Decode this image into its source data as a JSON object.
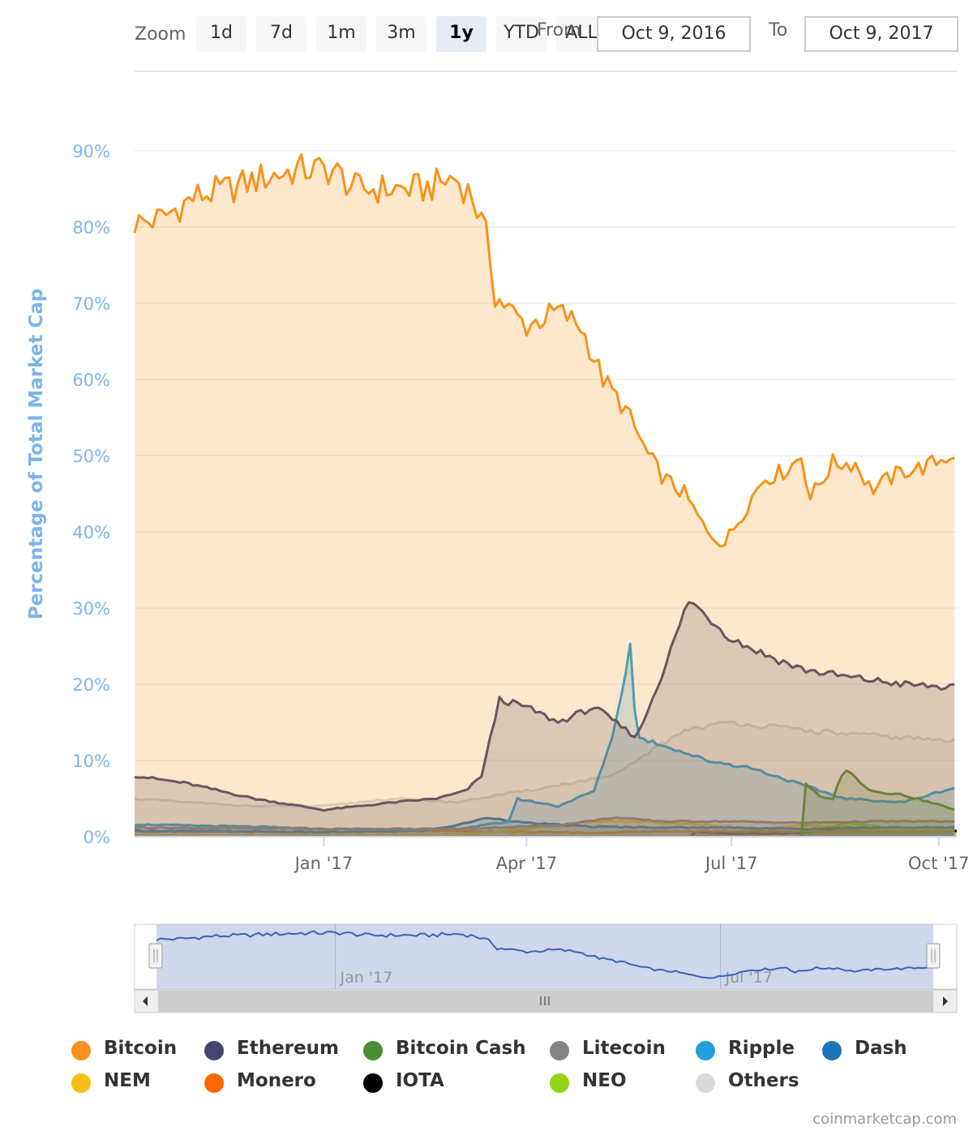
{
  "zoom": {
    "label": "Zoom",
    "buttons": [
      "1d",
      "7d",
      "1m",
      "3m",
      "1y",
      "YTD",
      "ALL"
    ],
    "active": "1y"
  },
  "range": {
    "from_label": "From",
    "from_value": "Oct 9, 2016",
    "to_label": "To",
    "to_value": "Oct 9, 2017"
  },
  "chart_data": {
    "type": "area",
    "ylabel": "Percentage of Total Market Cap",
    "y_ticks": [
      "0%",
      "10%",
      "20%",
      "30%",
      "40%",
      "50%",
      "60%",
      "70%",
      "80%",
      "90%"
    ],
    "ylim": [
      0,
      90
    ],
    "x_tick_labels": [
      "Jan '17",
      "Apr '17",
      "Jul '17",
      "Oct '17"
    ],
    "x_tick_dates": [
      "2017-01-01",
      "2017-04-01",
      "2017-07-01",
      "2017-10-01"
    ],
    "xlim": [
      "2016-10-09",
      "2017-10-09"
    ],
    "grid": true,
    "legend_position": "bottom",
    "series": [
      {
        "name": "Bitcoin",
        "color": "#f7931a",
        "x": [
          "2016-10-09",
          "2016-10-20",
          "2016-11-05",
          "2016-11-20",
          "2016-12-05",
          "2016-12-20",
          "2017-01-05",
          "2017-01-15",
          "2017-02-01",
          "2017-02-15",
          "2017-02-28",
          "2017-03-08",
          "2017-03-15",
          "2017-03-18",
          "2017-03-25",
          "2017-04-01",
          "2017-04-15",
          "2017-04-25",
          "2017-05-05",
          "2017-05-15",
          "2017-05-25",
          "2017-06-01",
          "2017-06-10",
          "2017-06-20",
          "2017-06-28",
          "2017-07-05",
          "2017-07-15",
          "2017-07-25",
          "2017-08-01",
          "2017-08-05",
          "2017-08-15",
          "2017-08-25",
          "2017-09-01",
          "2017-09-15",
          "2017-09-25",
          "2017-10-09"
        ],
        "values": [
          80.5,
          81,
          84,
          85,
          86.5,
          87.5,
          87.5,
          85,
          85,
          85,
          86.5,
          84,
          78,
          71,
          69,
          67,
          69,
          67,
          60,
          56,
          50,
          47,
          45,
          40,
          38.5,
          42,
          47,
          48,
          50,
          44.5,
          49,
          49,
          45.5,
          48,
          48.5,
          50.5
        ]
      },
      {
        "name": "Ethereum",
        "color": "#434670",
        "x": [
          "2016-10-09",
          "2016-11-01",
          "2016-12-01",
          "2017-01-01",
          "2017-02-01",
          "2017-02-20",
          "2017-03-05",
          "2017-03-12",
          "2017-03-20",
          "2017-04-01",
          "2017-04-15",
          "2017-05-01",
          "2017-05-20",
          "2017-06-01",
          "2017-06-12",
          "2017-06-20",
          "2017-07-01",
          "2017-07-15",
          "2017-08-01",
          "2017-08-20",
          "2017-09-15",
          "2017-10-09"
        ],
        "values": [
          8,
          7,
          5,
          3.5,
          4.5,
          5,
          6,
          8,
          18,
          17,
          15,
          17,
          13,
          22,
          31,
          29,
          26,
          24,
          22,
          21,
          20,
          19.5
        ]
      },
      {
        "name": "Bitcoin Cash",
        "color": "#478f33",
        "x": [
          "2017-08-01",
          "2017-08-03",
          "2017-08-10",
          "2017-08-15",
          "2017-08-20",
          "2017-09-01",
          "2017-09-15",
          "2017-10-09"
        ],
        "values": [
          0,
          7,
          5,
          5,
          9,
          6,
          5.5,
          3.5
        ]
      },
      {
        "name": "Litecoin",
        "color": "#838383",
        "x": [
          "2016-10-09",
          "2017-01-01",
          "2017-03-01",
          "2017-04-15",
          "2017-05-10",
          "2017-06-01",
          "2017-07-01",
          "2017-08-01",
          "2017-09-01",
          "2017-10-09"
        ],
        "values": [
          1.2,
          1,
          1,
          1.5,
          2.5,
          2,
          2,
          1.8,
          2,
          2
        ]
      },
      {
        "name": "Ripple",
        "color": "#1fa0dc",
        "x": [
          "2016-10-09",
          "2016-12-01",
          "2017-01-01",
          "2017-03-01",
          "2017-03-25",
          "2017-03-27",
          "2017-04-15",
          "2017-05-01",
          "2017-05-10",
          "2017-05-17",
          "2017-05-20",
          "2017-06-01",
          "2017-06-20",
          "2017-07-10",
          "2017-07-30",
          "2017-08-20",
          "2017-09-15",
          "2017-10-09"
        ],
        "values": [
          1.6,
          1.3,
          1,
          1,
          2,
          5,
          4,
          6,
          14,
          25,
          13,
          12,
          10,
          9,
          7,
          5,
          4.5,
          6.5
        ]
      },
      {
        "name": "Dash",
        "color": "#1c75bc",
        "x": [
          "2016-10-09",
          "2017-01-01",
          "2017-02-15",
          "2017-03-01",
          "2017-03-15",
          "2017-04-01",
          "2017-05-01",
          "2017-06-01",
          "2017-07-01",
          "2017-08-01",
          "2017-09-01",
          "2017-10-09"
        ],
        "values": [
          0.8,
          0.6,
          0.8,
          1.5,
          2.5,
          1.8,
          1.3,
          1.2,
          1.2,
          1,
          1.2,
          1.2
        ]
      },
      {
        "name": "NEM",
        "color": "#f7bf13",
        "x": [
          "2016-10-09",
          "2017-03-01",
          "2017-04-01",
          "2017-05-01",
          "2017-05-20",
          "2017-06-20",
          "2017-07-15",
          "2017-08-01",
          "2017-09-01",
          "2017-10-09"
        ],
        "values": [
          0.1,
          0.3,
          1,
          2,
          2,
          1.5,
          1,
          1.5,
          1,
          1
        ]
      },
      {
        "name": "Monero",
        "color": "#ff6600",
        "x": [
          "2016-10-09",
          "2017-01-01",
          "2017-03-01",
          "2017-04-01",
          "2017-05-01",
          "2017-06-01",
          "2017-07-01",
          "2017-08-01",
          "2017-09-01",
          "2017-10-09"
        ],
        "values": [
          0.7,
          0.6,
          0.8,
          0.6,
          0.5,
          0.7,
          0.7,
          0.7,
          0.8,
          0.8
        ]
      },
      {
        "name": "IOTA",
        "color": "#000000",
        "x": [
          "2017-06-13",
          "2017-06-14",
          "2017-07-01",
          "2017-08-01",
          "2017-08-20",
          "2017-09-01",
          "2017-10-09"
        ],
        "values": [
          0,
          0.7,
          0.4,
          0.5,
          1.2,
          1,
          0.8
        ]
      },
      {
        "name": "NEO",
        "color": "#95d413",
        "x": [
          "2016-10-09",
          "2017-06-01",
          "2017-07-15",
          "2017-08-10",
          "2017-08-20",
          "2017-09-15",
          "2017-10-09"
        ],
        "values": [
          0.1,
          0.1,
          0.3,
          1,
          1.8,
          1,
          0.9
        ]
      },
      {
        "name": "Others",
        "color": "#d9d9d9",
        "x": [
          "2016-10-09",
          "2016-11-01",
          "2016-12-01",
          "2017-01-01",
          "2017-02-01",
          "2017-03-01",
          "2017-03-20",
          "2017-04-01",
          "2017-04-20",
          "2017-05-10",
          "2017-05-25",
          "2017-06-10",
          "2017-07-01",
          "2017-08-01",
          "2017-08-20",
          "2017-09-15",
          "2017-10-09"
        ],
        "values": [
          5,
          4.5,
          4,
          4,
          5,
          4.5,
          5.5,
          6,
          7,
          8,
          11,
          14,
          15,
          14,
          13.5,
          13,
          12.5
        ]
      }
    ],
    "navigator": {
      "tick_labels": [
        "Jan '17",
        "Jul '17"
      ],
      "series_name": "Bitcoin"
    }
  },
  "credit": "coinmarketcap.com"
}
